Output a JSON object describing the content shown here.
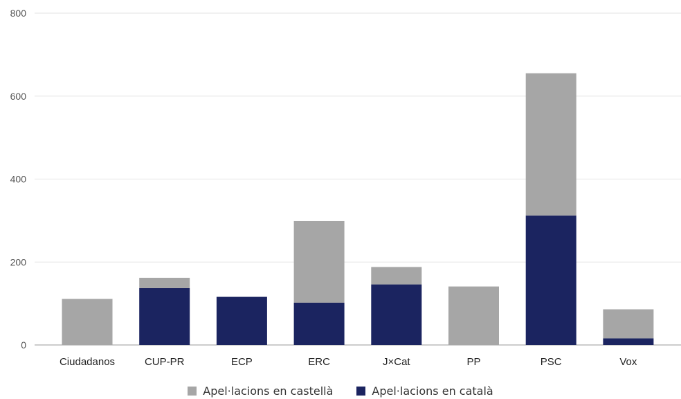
{
  "chart_data": {
    "type": "bar",
    "stacked": true,
    "categories": [
      "Ciudadanos",
      "CUP-PR",
      "ECP",
      "ERC",
      "J×Cat",
      "PP",
      "PSC",
      "Vox"
    ],
    "series": [
      {
        "name": "Apel·lacions en català",
        "color": "#1b2460",
        "values": [
          0,
          137,
          116,
          102,
          146,
          0,
          312,
          16
        ]
      },
      {
        "name": "Apel·lacions en castellà",
        "color": "#a6a6a6",
        "values": [
          111,
          25,
          0,
          197,
          42,
          141,
          343,
          70
        ]
      }
    ],
    "y_ticks": [
      "0",
      "200",
      "400",
      "600",
      "800"
    ],
    "ylim": [
      0,
      800
    ],
    "xlabel": "",
    "ylabel": "",
    "grid": true,
    "legend_position": "bottom",
    "legend_order": [
      "Apel·lacions en castellà",
      "Apel·lacions en català"
    ]
  }
}
